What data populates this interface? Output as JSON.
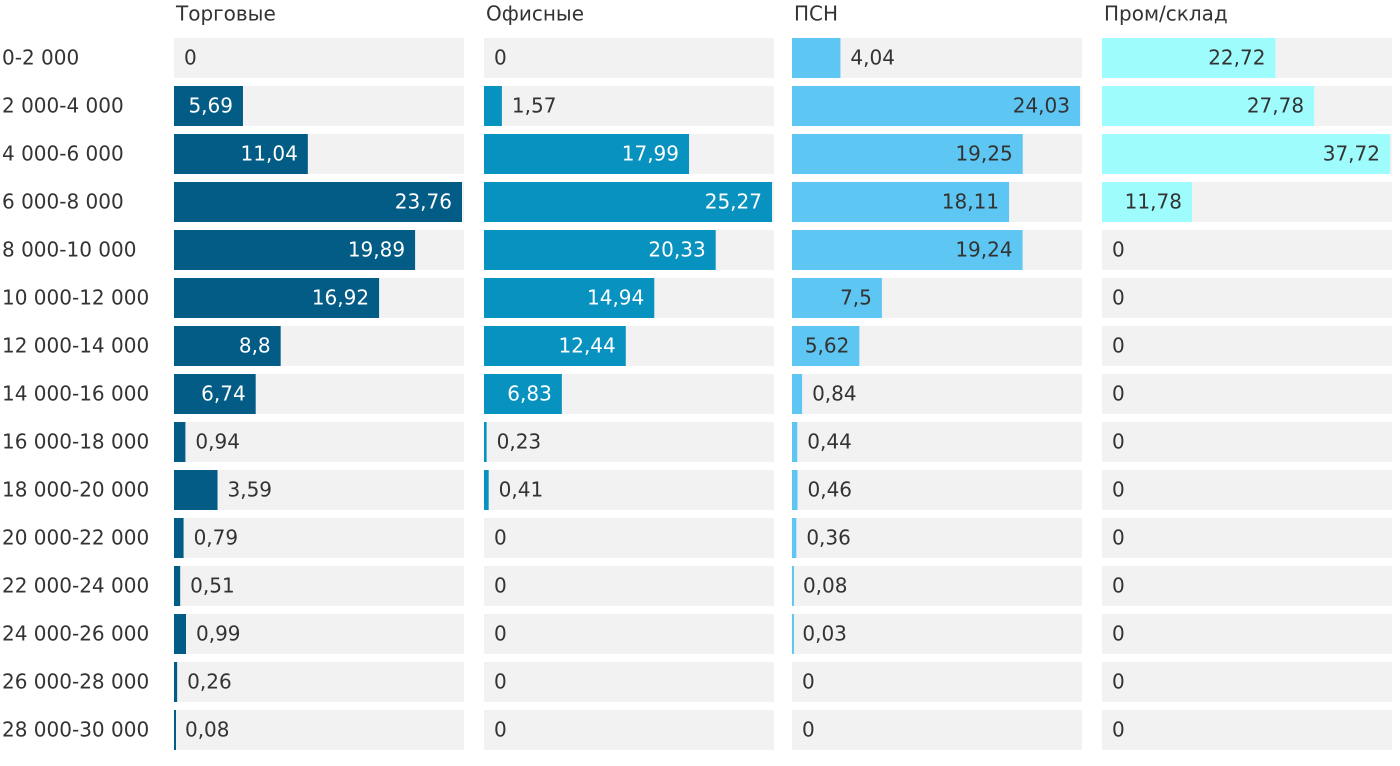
{
  "chart_data": {
    "type": "bar",
    "categories": [
      "0-2 000",
      "2 000-4 000",
      "4 000-6 000",
      "6 000-8 000",
      "8 000-10 000",
      "10 000-12 000",
      "12 000-14 000",
      "14 000-16 000",
      "16 000-18 000",
      "18 000-20 000",
      "20 000-22 000",
      "22 000-24 000",
      "24 000-26 000",
      "26 000-28 000",
      "28 000-30 000"
    ],
    "series": [
      {
        "name": "Торговые",
        "color": "#035c85",
        "values": [
          0,
          5.69,
          11.04,
          23.76,
          19.89,
          16.92,
          8.8,
          6.74,
          0.94,
          3.59,
          0.79,
          0.51,
          0.99,
          0.26,
          0.08
        ],
        "value_labels": [
          "0",
          "5,69",
          "11,04",
          "23,76",
          "19,89",
          "16,92",
          "8,8",
          "6,74",
          "0,94",
          "3,59",
          "0,79",
          "0,51",
          "0,99",
          "0,26",
          "0,08"
        ]
      },
      {
        "name": "Офисные",
        "color": "#0892bf",
        "values": [
          0,
          1.57,
          17.99,
          25.27,
          20.33,
          14.94,
          12.44,
          6.83,
          0.23,
          0.41,
          0,
          0,
          0,
          0,
          0
        ],
        "value_labels": [
          "0",
          "1,57",
          "17,99",
          "25,27",
          "20,33",
          "14,94",
          "12,44",
          "6,83",
          "0,23",
          "0,41",
          "0",
          "0",
          "0",
          "0",
          "0"
        ]
      },
      {
        "name": "ПСН",
        "color": "#5ec6f2",
        "values": [
          4.04,
          24.03,
          19.25,
          18.11,
          19.24,
          7.5,
          5.62,
          0.84,
          0.44,
          0.46,
          0.36,
          0.08,
          0.03,
          0,
          0
        ],
        "value_labels": [
          "4,04",
          "24,03",
          "19,25",
          "18,11",
          "19,24",
          "7,5",
          "5,62",
          "0,84",
          "0,44",
          "0,46",
          "0,36",
          "0,08",
          "0,03",
          "0",
          "0"
        ]
      },
      {
        "name": "Пром/склад",
        "color": "#9efcfd",
        "values": [
          22.72,
          27.78,
          37.72,
          11.78,
          0,
          0,
          0,
          0,
          0,
          0,
          0,
          0,
          0,
          0,
          0
        ],
        "value_labels": [
          "22,72",
          "27,78",
          "37,72",
          "11,78",
          "0",
          "0",
          "0",
          "0",
          "0",
          "0",
          "0",
          "0",
          "0",
          "0",
          "0"
        ]
      }
    ]
  }
}
